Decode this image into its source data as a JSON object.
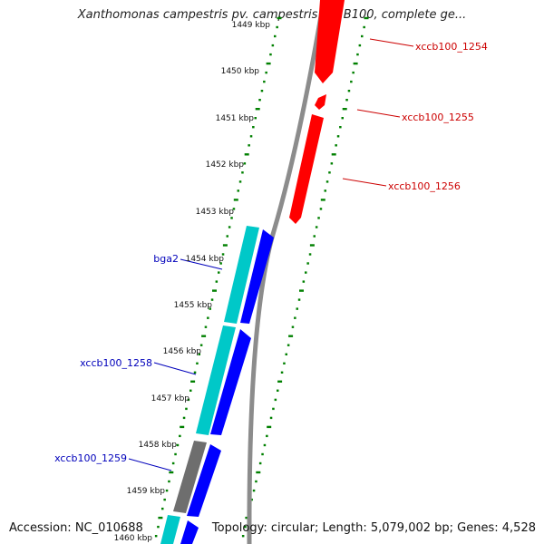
{
  "title": "Xanthomonas campestris pv. campestris str. B100, complete ge...",
  "footer": {
    "accession": "Accession: NC_010688",
    "summary": "Topology: circular; Length: 5,079,002 bp; Genes: 4,528"
  },
  "colors": {
    "background": "#ffffff",
    "backbone": "#8c8c8c",
    "forward_gene": "#ff0000",
    "reverse_gene": "#0000ff",
    "cds_cyan": "#00c8c8",
    "grey_feature": "#6e6e6e",
    "gene_label_forward": "#cc0000",
    "gene_label_reverse": "#0000bb",
    "tick_mark": "#008000"
  },
  "tick_labels": [
    "1449 kbp",
    "1450 kbp",
    "1451 kbp",
    "1452 kbp",
    "1453 kbp",
    "1454 kbp",
    "1455 kbp",
    "1456 kbp",
    "1457 kbp",
    "1458 kbp",
    "1459 kbp",
    "1460 kbp"
  ],
  "gene_labels": {
    "xccb100_1254": "xccb100_1254",
    "xccb100_1255": "xccb100_1255",
    "xccb100_1256": "xccb100_1256",
    "bga2": "bga2",
    "xccb100_1258": "xccb100_1258",
    "xccb100_1259": "xccb100_1259"
  }
}
